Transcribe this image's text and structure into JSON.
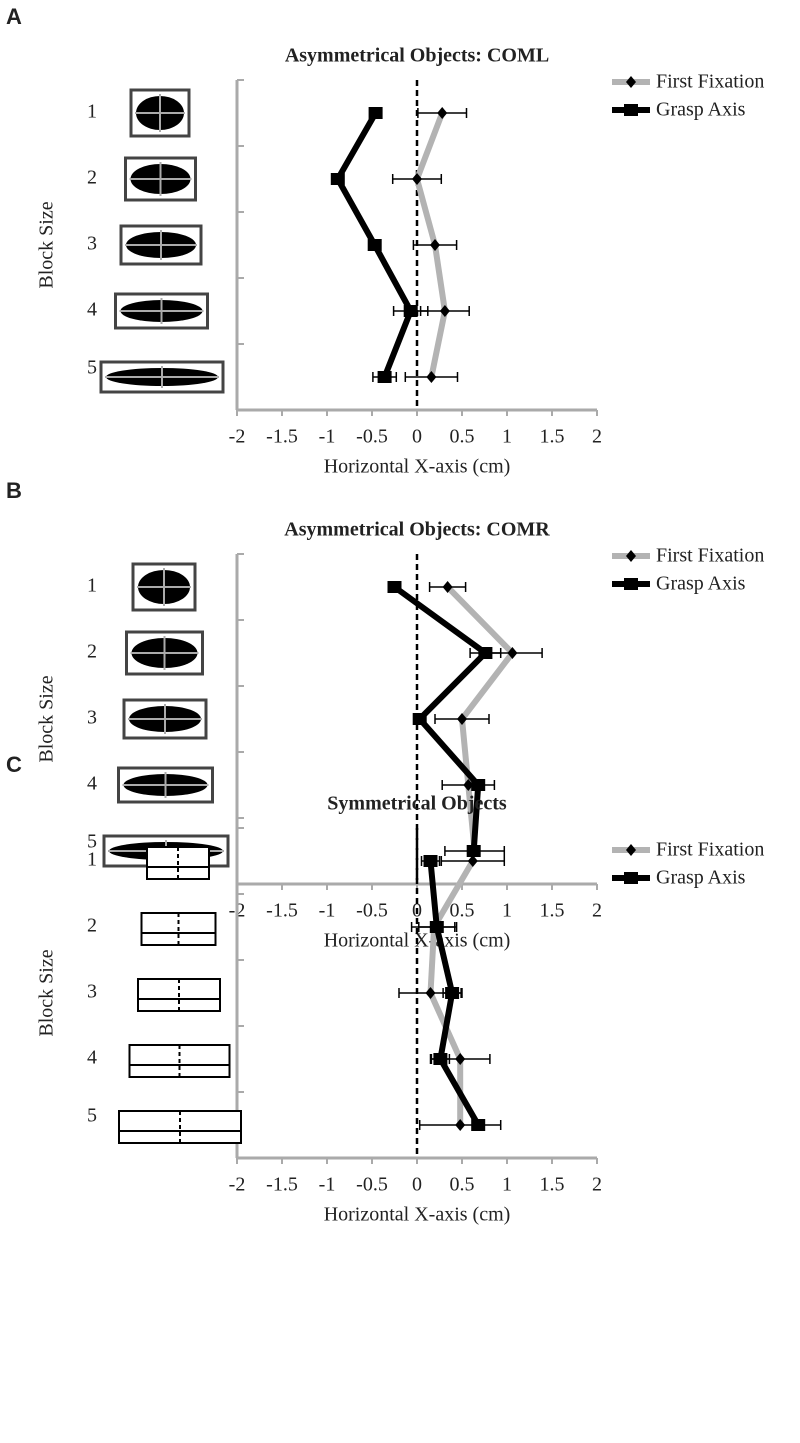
{
  "chart_data": [
    {
      "type": "line",
      "label": "A",
      "title": "Asymmetrical Objects: COML",
      "ylabel": "Block Size",
      "xlabel": "Horizontal X-axis (cm)",
      "categories": [
        "1",
        "2",
        "3",
        "4",
        "5"
      ],
      "xlim": [
        -2,
        2
      ],
      "xticks": [
        -2,
        -1.5,
        -1,
        -0.5,
        0,
        0.5,
        1,
        1.5,
        2
      ],
      "series": [
        {
          "name": "First Fixation",
          "color": "#b3b3b3",
          "marker": "diamond",
          "values": [
            0.28,
            0.0,
            0.2,
            0.31,
            0.16
          ],
          "errors": [
            0.27,
            0.27,
            0.24,
            0.27,
            0.29
          ]
        },
        {
          "name": "Grasp Axis",
          "color": "#000000",
          "marker": "square",
          "values": [
            -0.46,
            -0.88,
            -0.47,
            -0.07,
            -0.36
          ],
          "errors": [
            0.05,
            0.05,
            0.04,
            0.19,
            0.13
          ]
        }
      ]
    },
    {
      "type": "line",
      "label": "B",
      "title": "Asymmetrical Objects: COMR",
      "ylabel": "Block Size",
      "xlabel": "Horizontal X-axis (cm)",
      "categories": [
        "1",
        "2",
        "3",
        "4",
        "5"
      ],
      "xlim": [
        -2,
        2
      ],
      "xticks": [
        -2,
        -1.5,
        -1,
        -0.5,
        0,
        0.5,
        1,
        1.5,
        2
      ],
      "series": [
        {
          "name": "First Fixation",
          "color": "#b3b3b3",
          "marker": "diamond",
          "values": [
            0.34,
            1.06,
            0.5,
            0.57,
            0.64
          ],
          "errors": [
            0.2,
            0.33,
            0.3,
            0.29,
            0.33
          ]
        },
        {
          "name": "Grasp Axis",
          "color": "#000000",
          "marker": "square",
          "values": [
            -0.25,
            0.76,
            0.03,
            0.68,
            0.63
          ],
          "errors": [
            0.06,
            0.17,
            0.03,
            0.06,
            0.05
          ]
        }
      ]
    },
    {
      "type": "line",
      "label": "C",
      "title": "Symmetrical Objects",
      "ylabel": "Block Size",
      "xlabel": "Horizontal X-axis (cm)",
      "categories": [
        "1",
        "2",
        "3",
        "4",
        "5"
      ],
      "xlim": [
        -2,
        2
      ],
      "xticks": [
        -2,
        -1.5,
        -1,
        -0.5,
        0,
        0.5,
        1,
        1.5,
        2
      ],
      "series": [
        {
          "name": "First Fixation",
          "color": "#b3b3b3",
          "marker": "diamond",
          "values": [
            0.62,
            0.19,
            0.15,
            0.48,
            0.48
          ],
          "errors": [
            0.35,
            0.25,
            0.35,
            0.33,
            0.45
          ]
        },
        {
          "name": "Grasp Axis",
          "color": "#000000",
          "marker": "square",
          "values": [
            0.15,
            0.22,
            0.39,
            0.26,
            0.68
          ],
          "errors": [
            0.1,
            0.2,
            0.1,
            0.1,
            0.05
          ]
        }
      ]
    }
  ]
}
